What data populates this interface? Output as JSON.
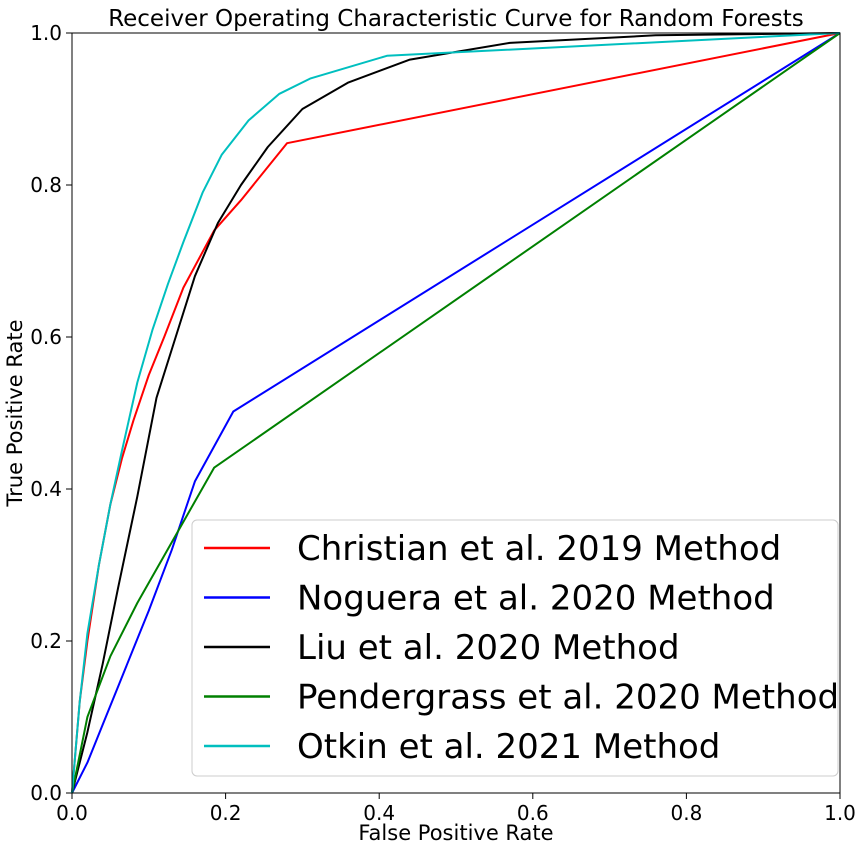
{
  "chart_data": {
    "type": "line",
    "title": "Receiver Operating Characteristic Curve for Random Forests",
    "xlabel": "False Positive Rate",
    "ylabel": "True Positive Rate",
    "xlim": [
      0.0,
      1.0
    ],
    "ylim": [
      0.0,
      1.0
    ],
    "xticks": [
      "0.0",
      "0.2",
      "0.4",
      "0.6",
      "0.8",
      "1.0"
    ],
    "yticks": [
      "0.0",
      "0.2",
      "0.4",
      "0.6",
      "0.8",
      "1.0"
    ],
    "grid": false,
    "legend_position": "lower-right",
    "series": [
      {
        "name": "Christian et al. 2019 Method",
        "color": "#ff0000",
        "x": [
          0.0,
          0.01,
          0.02,
          0.035,
          0.05,
          0.065,
          0.08,
          0.1,
          0.12,
          0.145,
          0.185,
          0.22,
          0.28,
          1.0
        ],
        "y": [
          0.0,
          0.12,
          0.2,
          0.3,
          0.38,
          0.44,
          0.49,
          0.55,
          0.6,
          0.665,
          0.74,
          0.78,
          0.855,
          1.0
        ]
      },
      {
        "name": "Noguera et al. 2020 Method",
        "color": "#0000ff",
        "x": [
          0.0,
          0.02,
          0.04,
          0.06,
          0.08,
          0.1,
          0.13,
          0.16,
          0.21,
          1.0
        ],
        "y": [
          0.0,
          0.04,
          0.09,
          0.14,
          0.19,
          0.24,
          0.32,
          0.41,
          0.502,
          1.0
        ]
      },
      {
        "name": "Liu et al. 2020 Method",
        "color": "#000000",
        "x": [
          0.0,
          0.02,
          0.04,
          0.06,
          0.085,
          0.11,
          0.135,
          0.16,
          0.19,
          0.22,
          0.255,
          0.3,
          0.36,
          0.44,
          0.57,
          0.76,
          1.0
        ],
        "y": [
          0.0,
          0.08,
          0.17,
          0.27,
          0.39,
          0.52,
          0.6,
          0.68,
          0.75,
          0.8,
          0.85,
          0.9,
          0.935,
          0.965,
          0.987,
          0.997,
          1.0
        ]
      },
      {
        "name": "Pendergrass et al. 2020 Method",
        "color": "#008000",
        "x": [
          0.0,
          0.02,
          0.05,
          0.085,
          0.13,
          0.185,
          1.0
        ],
        "y": [
          0.0,
          0.1,
          0.18,
          0.25,
          0.33,
          0.428,
          1.0
        ]
      },
      {
        "name": "Otkin et al. 2021 Method",
        "color": "#00bfbf",
        "x": [
          0.0,
          0.01,
          0.02,
          0.035,
          0.05,
          0.065,
          0.085,
          0.105,
          0.125,
          0.145,
          0.17,
          0.195,
          0.23,
          0.27,
          0.31,
          0.41,
          1.0
        ],
        "y": [
          0.0,
          0.12,
          0.21,
          0.3,
          0.38,
          0.45,
          0.54,
          0.61,
          0.67,
          0.725,
          0.79,
          0.84,
          0.885,
          0.92,
          0.94,
          0.97,
          1.0
        ]
      }
    ]
  }
}
